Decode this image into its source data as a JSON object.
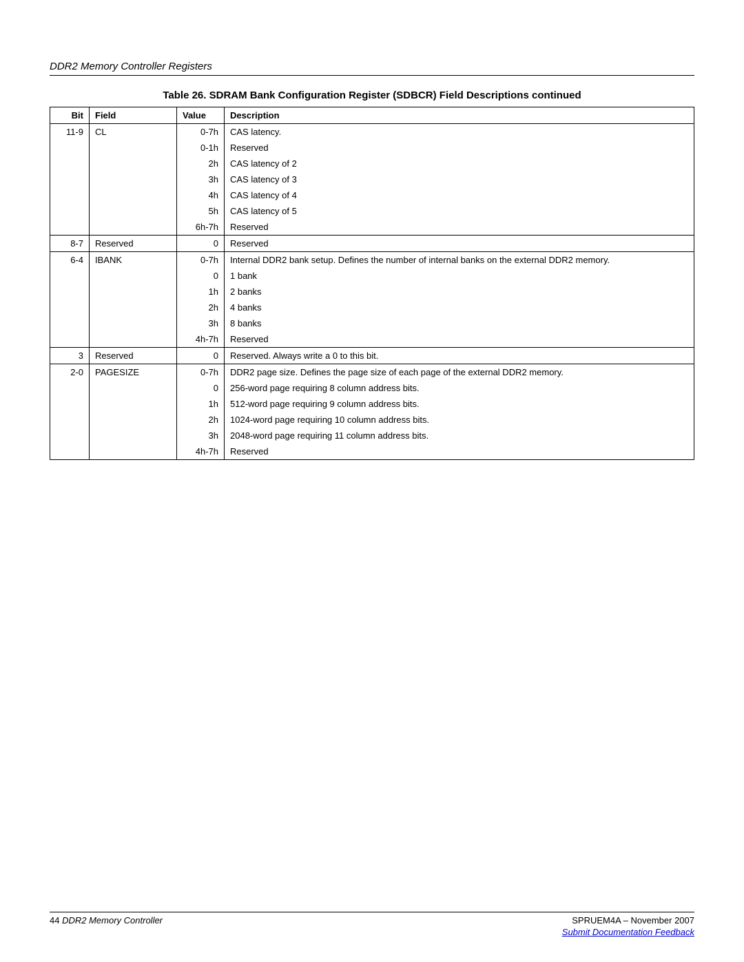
{
  "section_header": "DDR2 Memory Controller Registers",
  "table_title": "Table 26. SDRAM Bank Configuration Register (SDBCR) Field Descriptions  continued",
  "headers": {
    "bit": "Bit",
    "field": "Field",
    "value": "Value",
    "description": "Description"
  },
  "rows": [
    {
      "bit": "11-9",
      "field": "CL",
      "value": "0-7h",
      "desc": "CAS latency.",
      "group_start": true
    },
    {
      "bit": "",
      "field": "",
      "value": "0-1h",
      "desc": "Reserved"
    },
    {
      "bit": "",
      "field": "",
      "value": "2h",
      "desc": "CAS latency of 2"
    },
    {
      "bit": "",
      "field": "",
      "value": "3h",
      "desc": "CAS latency of 3"
    },
    {
      "bit": "",
      "field": "",
      "value": "4h",
      "desc": "CAS latency of 4"
    },
    {
      "bit": "",
      "field": "",
      "value": "5h",
      "desc": "CAS latency of 5"
    },
    {
      "bit": "",
      "field": "",
      "value": "6h-7h",
      "desc": "Reserved"
    },
    {
      "bit": "8-7",
      "field": "Reserved",
      "value": "0",
      "desc": "Reserved",
      "group_start": true
    },
    {
      "bit": "6-4",
      "field": "IBANK",
      "value": "0-7h",
      "desc": "Internal DDR2 bank setup. Defines the number of internal banks on the external DDR2 memory.",
      "group_start": true
    },
    {
      "bit": "",
      "field": "",
      "value": "0",
      "desc": "1 bank"
    },
    {
      "bit": "",
      "field": "",
      "value": "1h",
      "desc": "2 banks"
    },
    {
      "bit": "",
      "field": "",
      "value": "2h",
      "desc": "4 banks"
    },
    {
      "bit": "",
      "field": "",
      "value": "3h",
      "desc": "8 banks"
    },
    {
      "bit": "",
      "field": "",
      "value": "4h-7h",
      "desc": "Reserved"
    },
    {
      "bit": "3",
      "field": "Reserved",
      "value": "0",
      "desc": "Reserved. Always write a 0 to this bit.",
      "group_start": true
    },
    {
      "bit": "2-0",
      "field": "PAGESIZE",
      "value": "0-7h",
      "desc": "DDR2 page size. Defines the page size of each page of the external DDR2 memory.",
      "group_start": true
    },
    {
      "bit": "",
      "field": "",
      "value": "0",
      "desc": "256-word page requiring 8 column address bits."
    },
    {
      "bit": "",
      "field": "",
      "value": "1h",
      "desc": "512-word page requiring 9 column address bits."
    },
    {
      "bit": "",
      "field": "",
      "value": "2h",
      "desc": "1024-word page requiring 10 column address bits."
    },
    {
      "bit": "",
      "field": "",
      "value": "3h",
      "desc": "2048-word page requiring 11 column address bits."
    },
    {
      "bit": "",
      "field": "",
      "value": "4h-7h",
      "desc": "Reserved",
      "last": true
    }
  ],
  "footer": {
    "page_num": "44",
    "title": "DDR2 Memory Controller",
    "doc_id": "SPRUEM4A – November 2007",
    "link": "Submit Documentation Feedback"
  },
  "style": {
    "font_family": "Arial, Helvetica, sans-serif",
    "text_color": "#000000",
    "background_color": "#ffffff",
    "link_color": "#0000cc",
    "border_color": "#000000",
    "header_fontsize": 15,
    "title_fontsize": 15,
    "body_fontsize": 13,
    "column_widths": {
      "bit": 40,
      "field": 110,
      "value": 52
    }
  }
}
